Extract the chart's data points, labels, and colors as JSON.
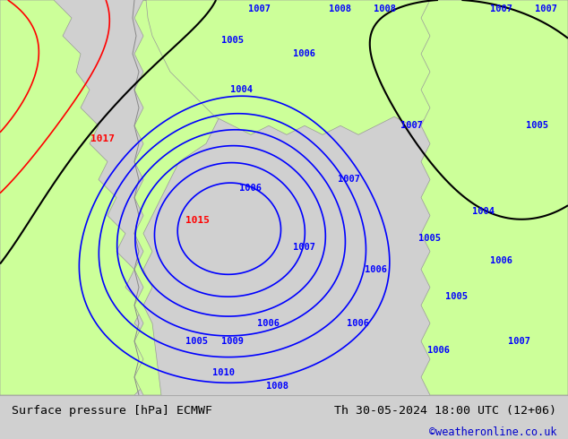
{
  "title_left": "Surface pressure [hPa] ECMWF",
  "title_right": "Th 30-05-2024 18:00 UTC (12+06)",
  "credit": "©weatheronline.co.uk",
  "credit_color": "#0000cc",
  "text_color": "#000000",
  "bg_color": "#d0d0d0",
  "land_color": "#ccff99",
  "sea_color": "#d8d8d8",
  "isobar_blue_color": "#0000ff",
  "isobar_red_color": "#ff0000",
  "isobar_black_color": "#000000",
  "label_blue_color": "#0000ff",
  "label_red_color": "#ff0000",
  "figsize": [
    6.34,
    4.9
  ],
  "dpi": 100,
  "bottom_bar_color": "#f0f0f0",
  "bottom_bar_height": 0.1
}
